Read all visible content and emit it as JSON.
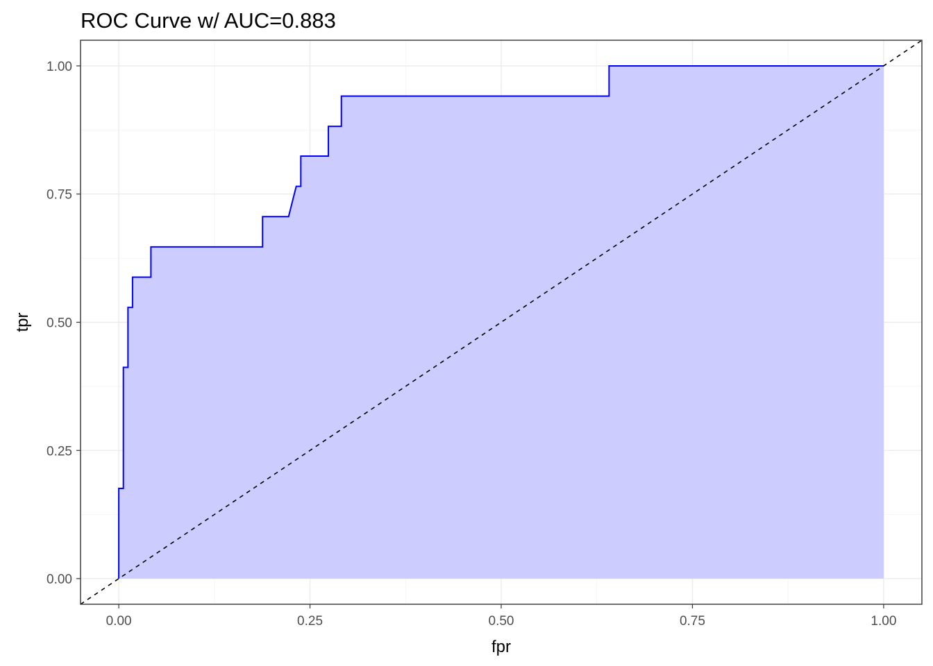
{
  "chart_data": {
    "type": "area",
    "title": "ROC Curve w/ AUC=0.883",
    "xlabel": "fpr",
    "ylabel": "tpr",
    "xlim": [
      -0.05,
      1.05
    ],
    "ylim": [
      -0.05,
      1.05
    ],
    "x_ticks": [
      0.0,
      0.25,
      0.5,
      0.75,
      1.0
    ],
    "x_tick_labels": [
      "0.00",
      "0.25",
      "0.50",
      "0.75",
      "1.00"
    ],
    "y_ticks": [
      0.0,
      0.25,
      0.5,
      0.75,
      1.0
    ],
    "y_tick_labels": [
      "0.00",
      "0.25",
      "0.50",
      "0.75",
      "1.00"
    ],
    "grid": true,
    "legend": "none",
    "colors": {
      "line": "#0000ff",
      "fill": "#ccccff",
      "diagonal": "#000000"
    },
    "series": [
      {
        "x": [
          0.0,
          0.0,
          0.006,
          0.006,
          0.012,
          0.012,
          0.018,
          0.018,
          0.024,
          0.024,
          0.042,
          0.042,
          0.188,
          0.188,
          0.222,
          0.232,
          0.238,
          0.238,
          0.274,
          0.274,
          0.291,
          0.291,
          0.641,
          0.641,
          1.0
        ],
        "y": [
          0.0,
          0.176,
          0.176,
          0.412,
          0.412,
          0.529,
          0.529,
          0.588,
          0.588,
          0.588,
          0.588,
          0.647,
          0.647,
          0.706,
          0.706,
          0.765,
          0.765,
          0.824,
          0.824,
          0.882,
          0.882,
          0.941,
          0.941,
          1.0,
          1.0
        ]
      }
    ],
    "reference_line": {
      "x": [
        -0.05,
        1.05
      ],
      "y": [
        -0.05,
        1.05
      ],
      "style": "dashed"
    }
  }
}
